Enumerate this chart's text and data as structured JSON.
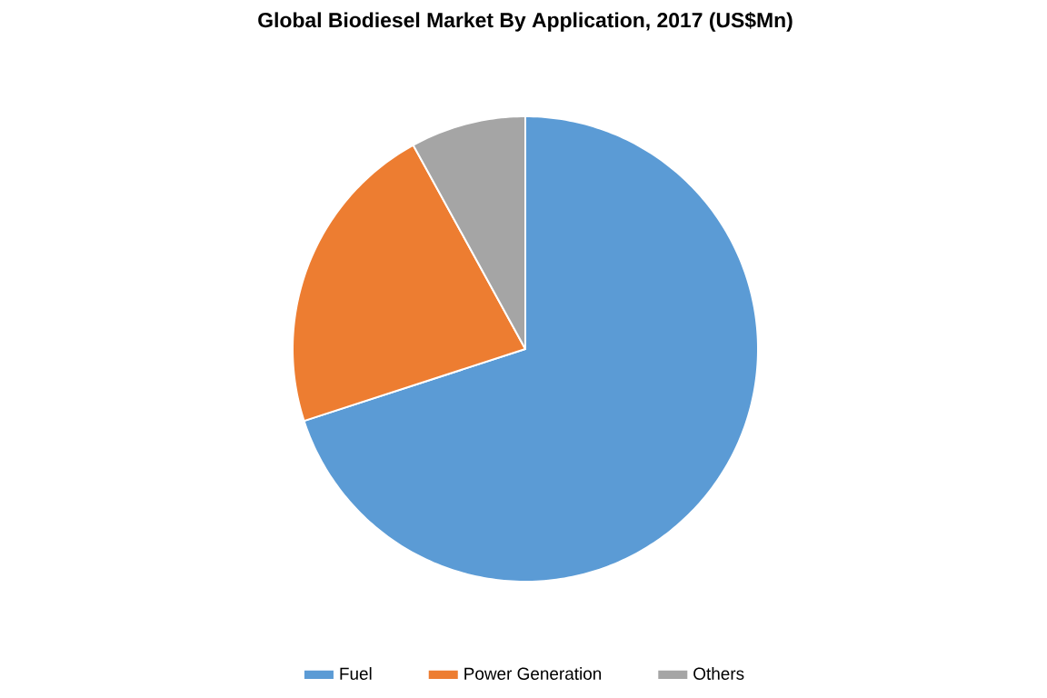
{
  "chart_data": {
    "type": "pie",
    "title": "Global Biodiesel Market By Application, 2017 (US$Mn)",
    "categories": [
      "Fuel",
      "Power Generation",
      "Others"
    ],
    "values": [
      70,
      22,
      8
    ],
    "colors": [
      "#5b9bd5",
      "#ed7d31",
      "#a5a5a5"
    ],
    "legend": "bottom"
  }
}
